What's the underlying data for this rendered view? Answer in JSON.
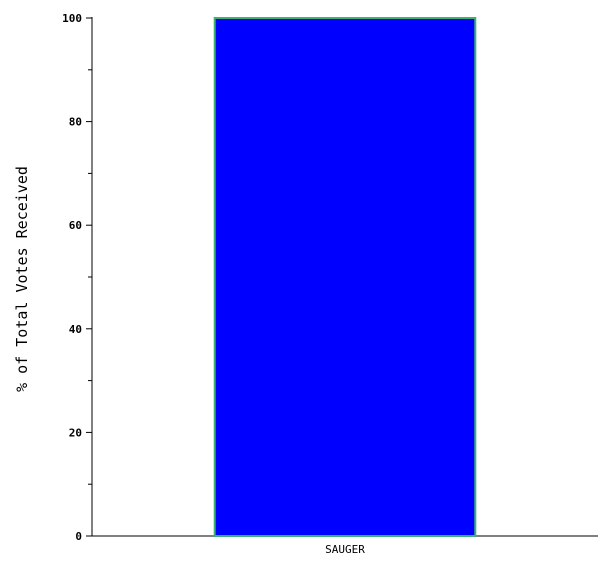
{
  "chart_data": {
    "type": "bar",
    "categories": [
      "SAUGER"
    ],
    "values": [
      100
    ],
    "ylabel": "% of Total Votes Received",
    "xlabel": "",
    "ylim": [
      0,
      100
    ],
    "yticks": [
      0,
      20,
      40,
      60,
      80,
      100
    ],
    "grid": false,
    "colors": {
      "bar_fill": "#0000ff",
      "bar_border": "#3cb371",
      "axis": "#000000"
    }
  }
}
